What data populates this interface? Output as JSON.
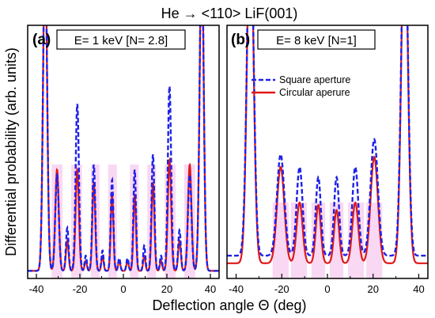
{
  "title": "He → <110> LiF(001)",
  "xlabel": "Deflection angle Θ (deg)",
  "ylabel": "Differential probability (arb. units)",
  "colors": {
    "square": "#1f22e8",
    "circular": "#e01818",
    "highlight": "#f6c8ee"
  },
  "chart_data": [
    {
      "type": "line",
      "panel_label": "(a)",
      "box_text": "E= 1 keV [N= 2.8]",
      "xlim": [
        -44,
        44
      ],
      "ylim": [
        0,
        1
      ],
      "xticks": [
        -40,
        -20,
        0,
        20,
        40
      ],
      "grid": false,
      "series": [
        {
          "name": "Square aperture",
          "style": "dashed",
          "peaks": [
            [
              -36,
              1.3,
              0.9
            ],
            [
              -30.5,
              0.38,
              0.8
            ],
            [
              -25.8,
              0.17,
              0.6
            ],
            [
              -21.2,
              0.66,
              0.75
            ],
            [
              -17.3,
              0.06,
              0.5
            ],
            [
              -13.6,
              0.42,
              0.65
            ],
            [
              -9.6,
              0.08,
              0.5
            ],
            [
              -5.2,
              0.36,
              0.6
            ],
            [
              -1.9,
              0.05,
              0.5
            ],
            [
              1.9,
              0.05,
              0.5
            ],
            [
              5.2,
              0.4,
              0.6
            ],
            [
              9.6,
              0.1,
              0.5
            ],
            [
              13.6,
              0.46,
              0.65
            ],
            [
              17.3,
              0.06,
              0.5
            ],
            [
              21.2,
              0.73,
              0.75
            ],
            [
              25.8,
              0.16,
              0.6
            ],
            [
              30.5,
              0.38,
              0.8
            ],
            [
              36,
              1.3,
              0.9
            ]
          ],
          "baseline": 0.03
        },
        {
          "name": "Circular aperure",
          "style": "solid",
          "peaks": [
            [
              -36,
              1.3,
              0.9
            ],
            [
              -30.5,
              0.4,
              0.8
            ],
            [
              -25.8,
              0.12,
              0.6
            ],
            [
              -21.2,
              0.4,
              0.75
            ],
            [
              -17.3,
              0.04,
              0.5
            ],
            [
              -13.6,
              0.35,
              0.65
            ],
            [
              -9.6,
              0.06,
              0.5
            ],
            [
              -5.2,
              0.3,
              0.6
            ],
            [
              -1.9,
              0.04,
              0.5
            ],
            [
              1.9,
              0.04,
              0.5
            ],
            [
              5.2,
              0.3,
              0.6
            ],
            [
              9.6,
              0.06,
              0.5
            ],
            [
              13.6,
              0.35,
              0.65
            ],
            [
              17.3,
              0.04,
              0.5
            ],
            [
              21.2,
              0.44,
              0.75
            ],
            [
              25.8,
              0.12,
              0.6
            ],
            [
              30.5,
              0.42,
              0.8
            ],
            [
              36,
              1.3,
              0.9
            ]
          ],
          "baseline": 0.03
        }
      ],
      "highlight": {
        "ymax": 0.45,
        "x_ranges": [
          [
            -33,
            -28
          ],
          [
            -24,
            -19
          ],
          [
            -15,
            -11
          ],
          [
            -7,
            -3
          ],
          [
            3,
            7
          ],
          [
            11,
            15
          ],
          [
            19,
            24
          ],
          [
            28,
            33
          ]
        ]
      },
      "legend": null
    },
    {
      "type": "line",
      "panel_label": "(b)",
      "box_text": "E= 8 keV [N=1]",
      "xlim": [
        -44,
        44
      ],
      "ylim": [
        0,
        1
      ],
      "xticks": [
        -40,
        -20,
        0,
        20,
        40
      ],
      "grid": false,
      "series": [
        {
          "name": "Square aperture",
          "style": "dashed",
          "peaks": [
            [
              -33.8,
              1.4,
              1.4
            ],
            [
              -20.5,
              0.4,
              1.6
            ],
            [
              -12.2,
              0.35,
              1.3
            ],
            [
              -4,
              0.31,
              1.1
            ],
            [
              4,
              0.31,
              1.1
            ],
            [
              12.2,
              0.35,
              1.3
            ],
            [
              20.5,
              0.46,
              1.6
            ],
            [
              33.8,
              1.4,
              1.4
            ]
          ],
          "baseline": 0.09
        },
        {
          "name": "Circular aperure",
          "style": "solid",
          "peaks": [
            [
              -33.8,
              1.4,
              1.4
            ],
            [
              -20.5,
              0.38,
              1.6
            ],
            [
              -12.2,
              0.24,
              1.3
            ],
            [
              -4,
              0.23,
              1.1
            ],
            [
              4,
              0.21,
              1.1
            ],
            [
              12.2,
              0.24,
              1.3
            ],
            [
              20.5,
              0.42,
              1.6
            ],
            [
              33.8,
              1.4,
              1.4
            ]
          ],
          "baseline": 0.06
        }
      ],
      "highlight": {
        "ymax": 0.3,
        "x_ranges": [
          [
            -24,
            -17
          ],
          [
            -16,
            -9
          ],
          [
            -7,
            -1
          ],
          [
            1,
            7
          ],
          [
            9,
            16
          ],
          [
            17,
            24
          ]
        ]
      },
      "legend": {
        "position": "top-right",
        "entries": [
          "Square aperture",
          "Circular aperure"
        ]
      }
    }
  ]
}
